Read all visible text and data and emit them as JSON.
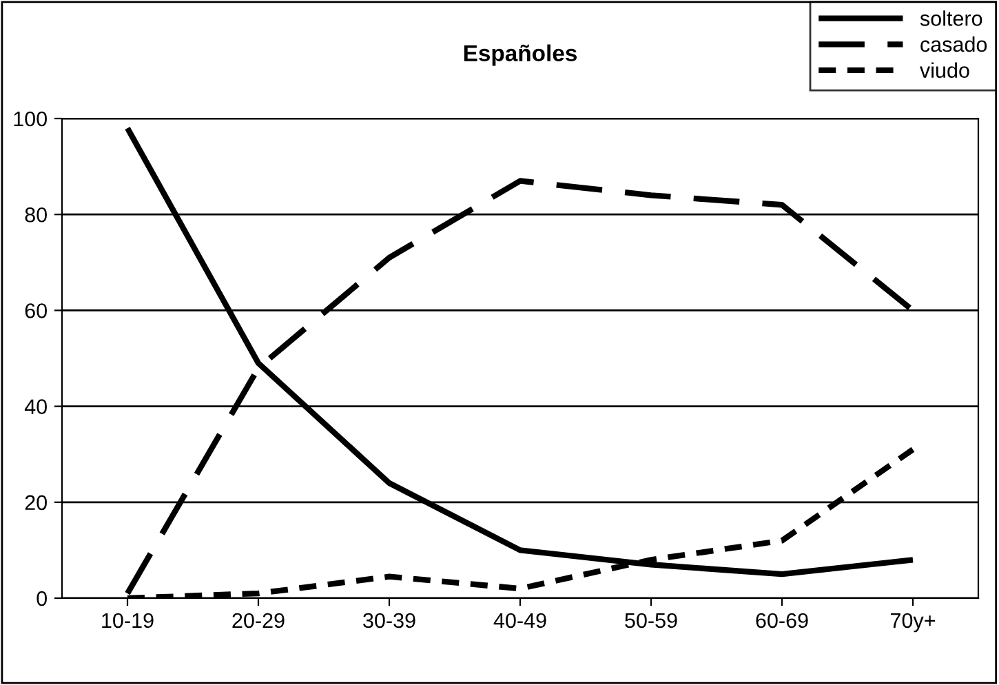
{
  "chart_data": {
    "type": "line",
    "title": "Españoles",
    "categories": [
      "10-19",
      "20-29",
      "30-39",
      "40-49",
      "50-59",
      "60-69",
      "70y+"
    ],
    "series": [
      {
        "name": "soltero",
        "color": "#000000",
        "line_style": "solid",
        "values": [
          98,
          49,
          24,
          10,
          7,
          5,
          8
        ]
      },
      {
        "name": "casado",
        "color": "#000000",
        "line_style": "dashed",
        "values": [
          1,
          48,
          71,
          87,
          84,
          82,
          60
        ]
      },
      {
        "name": "viudo",
        "color": "#000000",
        "line_style": "dotted",
        "values": [
          0,
          1,
          4.5,
          2,
          8,
          12,
          31
        ]
      }
    ],
    "ylim": [
      0,
      100
    ],
    "yticks": [
      0,
      20,
      40,
      60,
      80,
      100
    ],
    "grid": "y",
    "legend": "top right",
    "marker": "none"
  }
}
